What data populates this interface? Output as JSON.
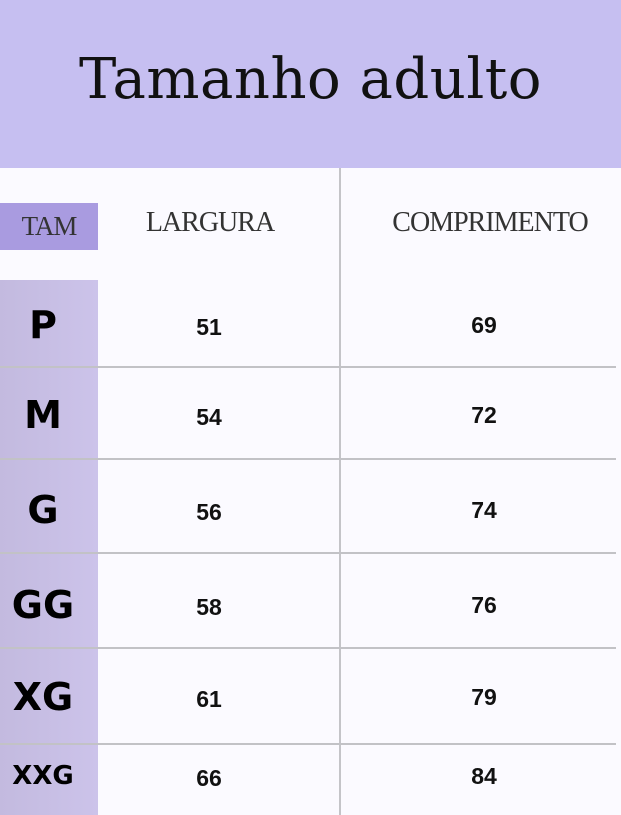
{
  "title": "Tamanho adulto",
  "headers": {
    "size": "TAM",
    "width": "LARGURA",
    "length": "COMPRIMENTO"
  },
  "rows": [
    {
      "size": "P",
      "width": "51",
      "length": "69"
    },
    {
      "size": "M",
      "width": "54",
      "length": "72"
    },
    {
      "size": "G",
      "width": "56",
      "length": "74"
    },
    {
      "size": "GG",
      "width": "58",
      "length": "76"
    },
    {
      "size": "XG",
      "width": "61",
      "length": "79"
    },
    {
      "size": "XXG",
      "width": "66",
      "length": "84"
    }
  ],
  "colors": {
    "banner": "#c6bff1",
    "size_column": "#c9c0e8",
    "size_header": "#a99be0",
    "background": "#fbfaff"
  }
}
